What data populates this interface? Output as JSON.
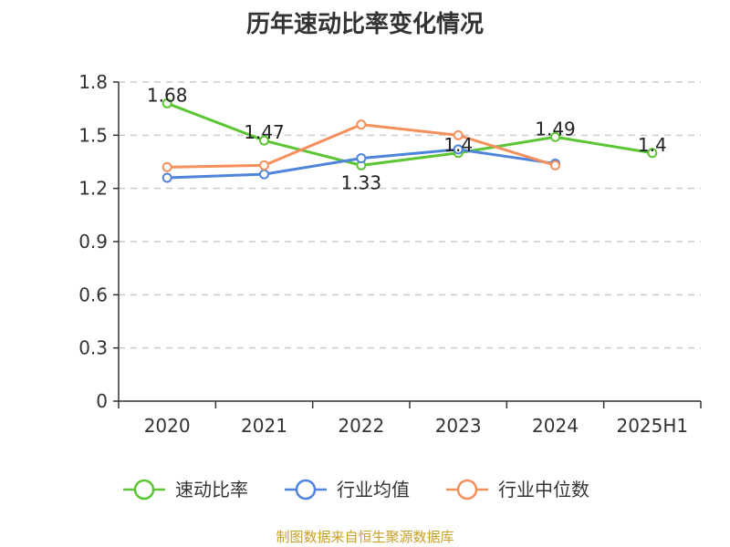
{
  "chart_title": "历年速动比率变化情况",
  "source_note": "制图数据来自恒生聚源数据库",
  "chart_data": {
    "type": "line",
    "title": "历年速动比率变化情况",
    "xlabel": "",
    "ylabel": "",
    "categories": [
      "2020",
      "2021",
      "2022",
      "2023",
      "2024",
      "2025H1"
    ],
    "ylim": [
      0,
      1.8
    ],
    "yticks": [
      "0",
      "0.3",
      "0.6",
      "0.9",
      "1.2",
      "1.5",
      "1.8"
    ],
    "grid": true,
    "legend_position": "bottom",
    "series": [
      {
        "name": "速动比率",
        "color": "#5cc534",
        "values": [
          1.68,
          1.47,
          1.33,
          1.4,
          1.49,
          1.4
        ],
        "labels": [
          "1.68",
          "1.47",
          "1.33",
          "1.4",
          "1.49",
          "1.4"
        ]
      },
      {
        "name": "行业均值",
        "color": "#4f84dc",
        "values": [
          1.26,
          1.28,
          1.37,
          1.42,
          1.34,
          null
        ]
      },
      {
        "name": "行业中位数",
        "color": "#f58f5c",
        "values": [
          1.32,
          1.33,
          1.56,
          1.5,
          1.33,
          null
        ]
      }
    ]
  }
}
